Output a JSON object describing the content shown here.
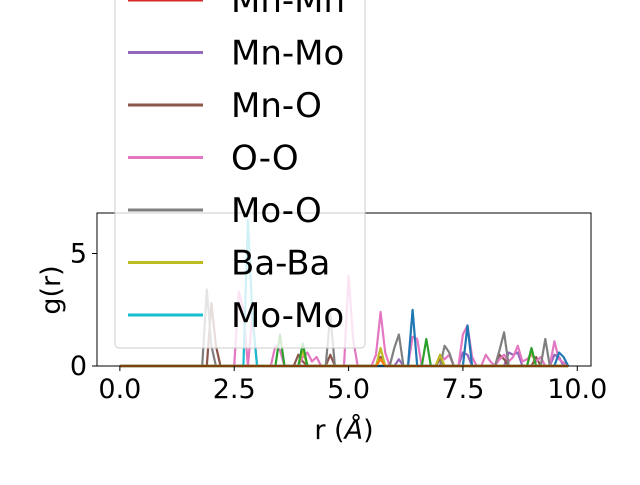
{
  "chart_data": {
    "type": "line",
    "xlabel": "r ($\\AA$)",
    "xlabel_display": {
      "prefix": "r (",
      "symbol": "Å",
      "suffix": ")"
    },
    "ylabel": "g(r)",
    "xlim": [
      -0.5,
      10.3
    ],
    "ylim": [
      0,
      6.8
    ],
    "xticks": [
      0.0,
      2.5,
      5.0,
      7.5,
      10.0
    ],
    "xtick_labels": [
      "0.0",
      "2.5",
      "5.0",
      "7.5",
      "10.0"
    ],
    "yticks": [
      0,
      5
    ],
    "ytick_labels": [
      "0",
      "5"
    ],
    "grid": false,
    "legend_position": "upper-left",
    "series": [
      {
        "name": "Mn-Mn",
        "color": "#d62728",
        "x": [
          0,
          9.8
        ],
        "y": [
          0,
          0
        ]
      },
      {
        "name": "Mn-Mo",
        "color": "#9467bd",
        "x": [
          0,
          5.6,
          5.7,
          5.8,
          6.0,
          6.1,
          6.2,
          7.4,
          7.5,
          7.6,
          7.7,
          8.4,
          8.5,
          8.6,
          8.7,
          8.8,
          9.4,
          9.5,
          9.6,
          9.7,
          9.8
        ],
        "y": [
          0,
          0,
          0.4,
          0,
          0,
          0.3,
          0,
          0,
          0.6,
          0.5,
          0,
          0,
          0.6,
          0.5,
          0.6,
          0,
          0,
          0.5,
          0.4,
          0,
          0
        ]
      },
      {
        "name": "Mn-O",
        "color": "#8c564b",
        "x": [
          0,
          1.9,
          2.0,
          2.1,
          2.2,
          3.8,
          3.9,
          4.0,
          4.1,
          4.5,
          4.6,
          4.7,
          5.6,
          5.7,
          5.8,
          6.9,
          7.0,
          7.1,
          8.2,
          8.3,
          8.4,
          8.5,
          9.0,
          9.1,
          9.2,
          9.8
        ],
        "y": [
          0,
          0,
          2.8,
          0.9,
          0,
          0,
          0.5,
          0.2,
          0,
          0,
          0.5,
          0,
          0,
          0.4,
          0,
          0,
          0.3,
          0,
          0,
          0.5,
          0.3,
          0,
          0,
          0.4,
          0,
          0
        ]
      },
      {
        "name": "O-O",
        "color": "#e377c2",
        "x": [
          0,
          2.5,
          2.6,
          2.7,
          2.8,
          2.9,
          3.0,
          3.3,
          3.4,
          3.5,
          3.6,
          3.9,
          4.0,
          4.1,
          4.2,
          4.3,
          4.4,
          4.9,
          5.0,
          5.1,
          5.2,
          5.5,
          5.6,
          5.7,
          5.8,
          5.9,
          6.3,
          6.4,
          6.5,
          6.6,
          6.9,
          7.0,
          7.1,
          7.2,
          7.3,
          7.4,
          7.5,
          7.6,
          7.7,
          7.8,
          7.9,
          8.0,
          8.1,
          8.2,
          8.3,
          8.4,
          8.5,
          8.6,
          8.7,
          8.8,
          8.9,
          9.0,
          9.1,
          9.2,
          9.3,
          9.4,
          9.5,
          9.6,
          9.8
        ],
        "y": [
          0,
          0,
          3.3,
          2.5,
          0,
          2.3,
          0,
          0,
          0.9,
          0.7,
          0,
          0,
          0.4,
          0.6,
          0.2,
          0.4,
          0,
          0,
          4.0,
          1.2,
          0,
          0,
          0.5,
          2.4,
          0.6,
          0,
          0,
          1.3,
          1.2,
          0,
          0,
          0.5,
          0.3,
          0.5,
          0,
          0,
          1.4,
          1.8,
          0.4,
          0,
          0,
          0.5,
          0.2,
          0,
          0.3,
          0.5,
          0.2,
          0.4,
          0.9,
          0.2,
          0.3,
          0.5,
          0.2,
          0.4,
          0,
          0,
          1.1,
          0.3,
          0
        ]
      },
      {
        "name": "Mo-O",
        "color": "#7f7f7f",
        "x": [
          0,
          1.8,
          1.9,
          2.0,
          2.1,
          4.5,
          4.6,
          4.7,
          5.9,
          6.0,
          6.1,
          6.2,
          7.0,
          7.1,
          7.2,
          7.3,
          8.2,
          8.3,
          8.4,
          8.5,
          9.2,
          9.3,
          9.4,
          9.8
        ],
        "y": [
          0,
          0,
          3.4,
          0.9,
          0,
          0,
          2.3,
          0,
          0,
          0.8,
          1.4,
          0,
          0,
          0.9,
          0.6,
          0,
          0,
          0.7,
          1.5,
          0,
          0,
          1.2,
          0,
          0
        ]
      },
      {
        "name": "Ba-Ba",
        "color": "#bcbd22",
        "x": [
          0,
          3.9,
          4.0,
          4.1,
          5.6,
          5.7,
          5.8,
          6.9,
          7.0,
          7.1,
          8.9,
          9.0,
          9.1,
          9.8
        ],
        "y": [
          0,
          0,
          0.7,
          0,
          0,
          0.8,
          0,
          0,
          0.5,
          0,
          0,
          0.7,
          0,
          0
        ]
      },
      {
        "name": "Mo-Mo",
        "color": "#17becf",
        "x": [
          0,
          2.7,
          2.8,
          2.9,
          3.0,
          5.6,
          5.7,
          5.8,
          9.8
        ],
        "y": [
          0,
          0,
          6.5,
          2.1,
          0,
          0,
          0.3,
          0,
          0
        ]
      },
      {
        "name": "",
        "color": "#2ca02c",
        "x": [
          0,
          3.4,
          3.5,
          3.6,
          3.9,
          4.0,
          4.1,
          6.6,
          6.7,
          6.8,
          8.9,
          9.0,
          9.1,
          9.8
        ],
        "y": [
          0,
          0,
          1.4,
          0,
          0,
          1.0,
          0,
          0,
          1.2,
          0,
          0,
          0.8,
          0,
          0
        ]
      },
      {
        "name": "",
        "color": "#1f77b4",
        "x": [
          0,
          6.3,
          6.4,
          6.5,
          7.5,
          7.6,
          7.7,
          9.5,
          9.6,
          9.7,
          9.8
        ],
        "y": [
          0,
          0,
          2.5,
          0,
          0,
          1.8,
          0,
          0,
          0.6,
          0.4,
          0
        ]
      },
      {
        "name": "",
        "color": "#ff7f0e",
        "x": [
          0,
          5.6,
          5.7,
          5.8,
          9.8
        ],
        "y": [
          0,
          0,
          0.3,
          0,
          0
        ]
      }
    ]
  }
}
